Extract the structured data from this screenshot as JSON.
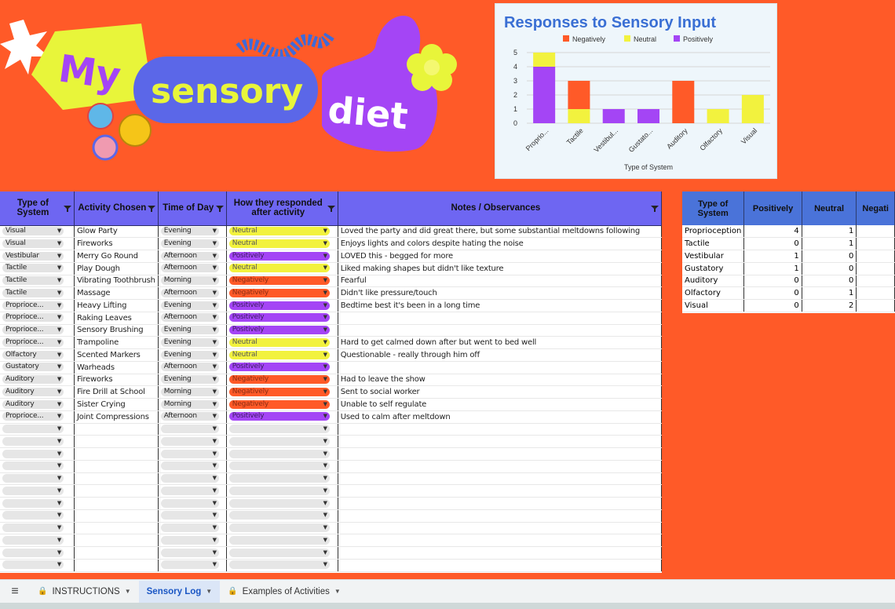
{
  "banner": {
    "word1": "My",
    "word2": "sensory",
    "word3": "diet"
  },
  "chart_data": {
    "type": "bar",
    "stacked": true,
    "title": "Responses to Sensory Input",
    "xlabel": "Type of System",
    "ylabel": "",
    "ylim": [
      0,
      5
    ],
    "grid": true,
    "legend_position": "top",
    "categories": [
      "Proprio...",
      "Tactile",
      "Vestibul...",
      "Gustato...",
      "Auditory",
      "Olfactory",
      "Visual"
    ],
    "y_ticks": [
      "0",
      "1",
      "2",
      "3",
      "4",
      "5"
    ],
    "series": [
      {
        "name": "Negatively",
        "color": "#ff5a28",
        "values": [
          0,
          2,
          0,
          0,
          3,
          0,
          0
        ]
      },
      {
        "name": "Neutral",
        "color": "#f2f23e",
        "values": [
          1,
          1,
          0,
          0,
          0,
          1,
          2
        ]
      },
      {
        "name": "Positively",
        "color": "#a445f5",
        "values": [
          4,
          0,
          1,
          1,
          0,
          0,
          0
        ]
      }
    ]
  },
  "log": {
    "headers": [
      "Type of System",
      "Activity Chosen",
      "Time of Day",
      "How they responded after activity",
      "Notes / Observances"
    ],
    "rows": [
      {
        "system": "Visual",
        "activity": "Glow Party",
        "time": "Evening",
        "response": "Neutral",
        "notes": "Loved the party and did great there, but some substantial meltdowns following"
      },
      {
        "system": "Visual",
        "activity": "Fireworks",
        "time": "Evening",
        "response": "Neutral",
        "notes": "Enjoys lights and colors despite hating the noise"
      },
      {
        "system": "Vestibular",
        "activity": "Merry Go Round",
        "time": "Afternoon",
        "response": "Positively",
        "notes": "LOVED this - begged for more"
      },
      {
        "system": "Tactile",
        "activity": "Play Dough",
        "time": "Afternoon",
        "response": "Neutral",
        "notes": "Liked making shapes but didn't like texture"
      },
      {
        "system": "Tactile",
        "activity": "Vibrating Toothbrush",
        "time": "Morning",
        "response": "Negatively",
        "notes": "Fearful"
      },
      {
        "system": "Tactile",
        "activity": "Massage",
        "time": "Afternoon",
        "response": "Negatively",
        "notes": "Didn't like pressure/touch"
      },
      {
        "system": "Proprioce...",
        "activity": "Heavy Lifting",
        "time": "Evening",
        "response": "Positively",
        "notes": "Bedtime best it's been in a long time"
      },
      {
        "system": "Proprioce...",
        "activity": "Raking Leaves",
        "time": "Afternoon",
        "response": "Positively",
        "notes": ""
      },
      {
        "system": "Proprioce...",
        "activity": "Sensory Brushing",
        "time": "Evening",
        "response": "Positively",
        "notes": ""
      },
      {
        "system": "Proprioce...",
        "activity": "Trampoline",
        "time": "Evening",
        "response": "Neutral",
        "notes": "Hard to get calmed down after but went to bed well"
      },
      {
        "system": "Olfactory",
        "activity": "Scented Markers",
        "time": "Evening",
        "response": "Neutral",
        "notes": "Questionable - really through him off"
      },
      {
        "system": "Gustatory",
        "activity": "Warheads",
        "time": "Afternoon",
        "response": "Positively",
        "notes": ""
      },
      {
        "system": "Auditory",
        "activity": "Fireworks",
        "time": "Evening",
        "response": "Negatively",
        "notes": "Had to leave the show"
      },
      {
        "system": "Auditory",
        "activity": "Fire Drill at School",
        "time": "Morning",
        "response": "Negatively",
        "notes": "Sent to social worker"
      },
      {
        "system": "Auditory",
        "activity": "Sister Crying",
        "time": "Morning",
        "response": "Negatively",
        "notes": "Unable to self regulate"
      },
      {
        "system": "Proprioce...",
        "activity": "Joint Compressions",
        "time": "Afternoon",
        "response": "Positively",
        "notes": "Used to calm after meltdown"
      }
    ]
  },
  "summary": {
    "headers": [
      "Type of System",
      "Positively",
      "Neutral",
      "Negati"
    ],
    "rows": [
      {
        "system": "Proprioception",
        "positively": "4",
        "neutral": "1",
        "negatively": ""
      },
      {
        "system": "Tactile",
        "positively": "0",
        "neutral": "1",
        "negatively": ""
      },
      {
        "system": "Vestibular",
        "positively": "1",
        "neutral": "0",
        "negatively": ""
      },
      {
        "system": "Gustatory",
        "positively": "1",
        "neutral": "0",
        "negatively": ""
      },
      {
        "system": "Auditory",
        "positively": "0",
        "neutral": "0",
        "negatively": ""
      },
      {
        "system": "Olfactory",
        "positively": "0",
        "neutral": "1",
        "negatively": ""
      },
      {
        "system": "Visual",
        "positively": "0",
        "neutral": "2",
        "negatively": ""
      }
    ]
  },
  "tabs": [
    {
      "label": "INSTRUCTIONS",
      "locked": true,
      "active": false
    },
    {
      "label": "Sensory Log",
      "locked": false,
      "active": true
    },
    {
      "label": "Examples of Activities",
      "locked": true,
      "active": false
    }
  ]
}
